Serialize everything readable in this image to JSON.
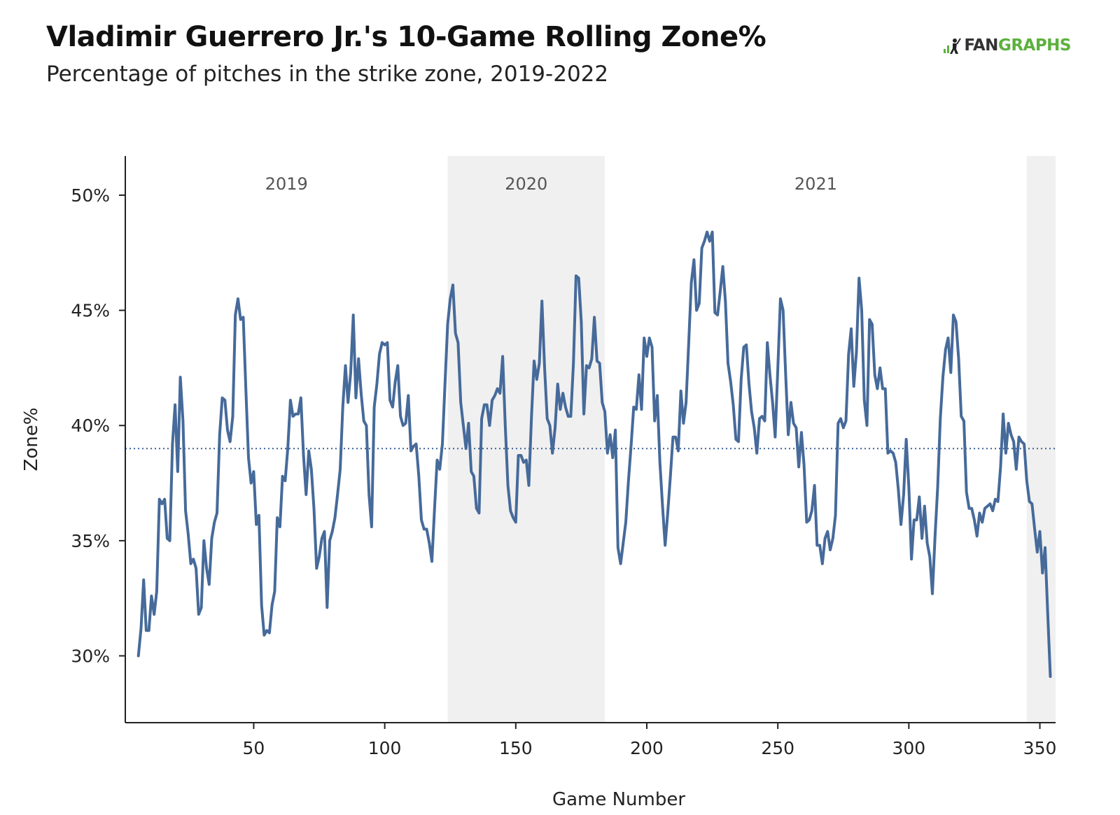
{
  "header": {
    "title": "Vladimir Guerrero Jr.'s 10-Game Rolling Zone%",
    "subtitle": "Percentage of pitches in the strike zone, 2019-2022",
    "logo_prefix": "FAN",
    "logo_suffix": "GRAPHS"
  },
  "colors": {
    "line": "#466a9a",
    "shade": "#f0f0f0",
    "logo_green": "#5cb13d"
  },
  "chart_data": {
    "type": "line",
    "title": "Vladimir Guerrero Jr.'s 10-Game Rolling Zone%",
    "subtitle": "Percentage of pitches in the strike zone, 2019-2022",
    "xlabel": "Game Number",
    "ylabel": "Zone%",
    "xlim": [
      1,
      356
    ],
    "ylim": [
      27.1,
      51.7
    ],
    "xticks": [
      50,
      100,
      150,
      200,
      250,
      300,
      350
    ],
    "yticks": [
      {
        "value": 30,
        "label": "30%"
      },
      {
        "value": 35,
        "label": "35%"
      },
      {
        "value": 40,
        "label": "40%"
      },
      {
        "value": 45,
        "label": "45%"
      },
      {
        "value": 50,
        "label": "50%"
      }
    ],
    "reference_line": {
      "value": 39.0,
      "style": "dotted"
    },
    "season_bands": [
      {
        "label": "2019",
        "start": 1,
        "end": 124,
        "shaded": false
      },
      {
        "label": "2020",
        "start": 124,
        "end": 184,
        "shaded": true
      },
      {
        "label": "2021",
        "start": 184,
        "end": 345,
        "shaded": false
      },
      {
        "label": "",
        "start": 345,
        "end": 356,
        "shaded": true
      }
    ],
    "series": [
      {
        "name": "10-Game Rolling Zone%",
        "x": [
          6,
          7,
          8,
          9,
          10,
          11,
          12,
          13,
          14,
          15,
          16,
          17,
          18,
          19,
          20,
          21,
          22,
          23,
          24,
          25,
          26,
          27,
          28,
          29,
          30,
          31,
          32,
          33,
          34,
          35,
          36,
          37,
          38,
          39,
          40,
          41,
          42,
          43,
          44,
          45,
          46,
          47,
          48,
          49,
          50,
          51,
          52,
          53,
          54,
          55,
          56,
          57,
          58,
          59,
          60,
          61,
          62,
          63,
          64,
          65,
          66,
          67,
          68,
          69,
          70,
          71,
          72,
          73,
          74,
          75,
          76,
          77,
          78,
          79,
          80,
          81,
          82,
          83,
          84,
          85,
          86,
          87,
          88,
          89,
          90,
          91,
          92,
          93,
          94,
          95,
          96,
          97,
          98,
          99,
          100,
          101,
          102,
          103,
          104,
          105,
          106,
          107,
          108,
          109,
          110,
          111,
          112,
          113,
          114,
          115,
          116,
          117,
          118,
          119,
          120,
          121,
          122,
          123,
          124,
          125,
          126,
          127,
          128,
          129,
          130,
          131,
          132,
          133,
          134,
          135,
          136,
          137,
          138,
          139,
          140,
          141,
          142,
          143,
          144,
          145,
          146,
          147,
          148,
          149,
          150,
          151,
          152,
          153,
          154,
          155,
          156,
          157,
          158,
          159,
          160,
          161,
          162,
          163,
          164,
          165,
          166,
          167,
          168,
          169,
          170,
          171,
          172,
          173,
          174,
          175,
          176,
          177,
          178,
          179,
          180,
          181,
          182,
          183,
          184,
          185,
          186,
          187,
          188,
          189,
          190,
          191,
          192,
          193,
          194,
          195,
          196,
          197,
          198,
          199,
          200,
          201,
          202,
          203,
          204,
          205,
          206,
          207,
          208,
          209,
          210,
          211,
          212,
          213,
          214,
          215,
          216,
          217,
          218,
          219,
          220,
          221,
          222,
          223,
          224,
          225,
          226,
          227,
          228,
          229,
          230,
          231,
          232,
          233,
          234,
          235,
          236,
          237,
          238,
          239,
          240,
          241,
          242,
          243,
          244,
          245,
          246,
          247,
          248,
          249,
          250,
          251,
          252,
          253,
          254,
          255,
          256,
          257,
          258,
          259,
          260,
          261,
          262,
          263,
          264,
          265,
          266,
          267,
          268,
          269,
          270,
          271,
          272,
          273,
          274,
          275,
          276,
          277,
          278,
          279,
          280,
          281,
          282,
          283,
          284,
          285,
          286,
          287,
          288,
          289,
          290,
          291,
          292,
          293,
          294,
          295,
          296,
          297,
          298,
          299,
          300,
          301,
          302,
          303,
          304,
          305,
          306,
          307,
          308,
          309,
          310,
          311,
          312,
          313,
          314,
          315,
          316,
          317,
          318,
          319,
          320,
          321,
          322,
          323,
          324,
          325,
          326,
          327,
          328,
          329,
          330,
          331,
          332,
          333,
          334,
          335,
          336,
          337,
          338,
          339,
          340,
          341,
          342,
          343,
          344,
          345,
          346,
          347,
          348,
          349,
          350,
          351,
          352,
          353,
          354
        ],
        "values": [
          30.0,
          31.2,
          33.3,
          31.1,
          31.1,
          32.6,
          31.8,
          32.8,
          36.8,
          36.6,
          36.8,
          35.1,
          35.0,
          39.2,
          40.9,
          38.0,
          42.1,
          40.2,
          36.3,
          35.3,
          34.0,
          34.2,
          33.8,
          31.8,
          32.1,
          35.0,
          33.8,
          33.1,
          35.1,
          35.8,
          36.2,
          39.6,
          41.2,
          41.1,
          39.8,
          39.3,
          40.4,
          44.8,
          45.5,
          44.6,
          44.7,
          41.6,
          38.6,
          37.5,
          38.0,
          35.7,
          36.1,
          32.2,
          30.9,
          31.1,
          31.0,
          32.2,
          32.8,
          36.0,
          35.6,
          37.8,
          37.6,
          39.0,
          41.1,
          40.4,
          40.5,
          40.5,
          41.2,
          38.7,
          37.0,
          38.9,
          38.1,
          36.4,
          33.8,
          34.3,
          35.1,
          35.4,
          32.1,
          35.0,
          35.4,
          36.0,
          37.0,
          38.1,
          40.8,
          42.6,
          41.0,
          42.3,
          44.8,
          41.2,
          42.9,
          41.4,
          40.2,
          40.0,
          37.0,
          35.6,
          40.8,
          41.8,
          43.1,
          43.6,
          43.5,
          43.6,
          41.1,
          40.8,
          41.9,
          42.6,
          40.4,
          40.0,
          40.1,
          41.3,
          38.9,
          39.1,
          39.2,
          37.8,
          35.9,
          35.5,
          35.5,
          34.9,
          34.1,
          36.4,
          38.5,
          38.1,
          39.2,
          41.8,
          44.4,
          45.5,
          46.1,
          44.0,
          43.6,
          41.0,
          40.0,
          39.0,
          40.1,
          38.0,
          37.8,
          36.4,
          36.2,
          40.3,
          40.9,
          40.9,
          40.0,
          41.1,
          41.3,
          41.6,
          41.4,
          43.0,
          40.0,
          37.4,
          36.3,
          36.0,
          35.8,
          38.7,
          38.7,
          38.4,
          38.5,
          37.4,
          40.4,
          42.8,
          42.0,
          42.7,
          45.4,
          42.5,
          40.3,
          40.0,
          38.8,
          39.9,
          41.8,
          40.7,
          41.4,
          40.8,
          40.4,
          40.4,
          42.7,
          46.5,
          46.4,
          44.5,
          40.5,
          42.6,
          42.5,
          42.9,
          44.7,
          42.8,
          42.7,
          41.0,
          40.6,
          38.8,
          39.6,
          38.6,
          39.8,
          34.7,
          34.0,
          34.9,
          35.8,
          37.6,
          39.1,
          40.8,
          40.7,
          42.2,
          40.7,
          43.8,
          43.0,
          43.8,
          43.4,
          40.2,
          41.3,
          38.4,
          36.5,
          34.8,
          36.2,
          37.8,
          39.5,
          39.5,
          38.9,
          41.5,
          40.1,
          41.0,
          43.6,
          46.2,
          47.2,
          45.0,
          45.3,
          47.7,
          48.0,
          48.4,
          48.0,
          48.4,
          44.9,
          44.8,
          45.8,
          46.9,
          45.4,
          42.7,
          41.9,
          40.9,
          39.4,
          39.3,
          42.0,
          43.4,
          43.5,
          41.8,
          40.6,
          39.9,
          38.8,
          40.3,
          40.4,
          40.2,
          43.6,
          42.2,
          41.0,
          39.5,
          42.5,
          45.5,
          45.0,
          42.2,
          39.6,
          41.0,
          40.1,
          39.9,
          38.2,
          39.7,
          38.3,
          35.8,
          35.9,
          36.3,
          37.4,
          34.8,
          34.8,
          34.0,
          35.1,
          35.4,
          34.6,
          35.1,
          36.1,
          40.1,
          40.3,
          39.9,
          40.2,
          43.1,
          44.2,
          41.7,
          43.2,
          46.4,
          45.0,
          41.1,
          40.0,
          44.6,
          44.4,
          42.2,
          41.6,
          42.5,
          41.6,
          41.6,
          38.8,
          38.9,
          38.8,
          38.4,
          37.2,
          35.7,
          37.0,
          39.4,
          37.3,
          34.2,
          35.9,
          35.9,
          36.9,
          35.1,
          36.5,
          34.9,
          34.3,
          32.7,
          35.2,
          37.3,
          40.3,
          42.1,
          43.3,
          43.8,
          42.3,
          44.8,
          44.5,
          42.9,
          40.4,
          40.2,
          37.1,
          36.4,
          36.4,
          35.9,
          35.2,
          36.2,
          35.8,
          36.4,
          36.5,
          36.6,
          36.3,
          36.8,
          36.7,
          38.2,
          40.5,
          38.8,
          40.1,
          39.6,
          39.3,
          38.1,
          39.5,
          39.3,
          39.2,
          37.6,
          36.7,
          36.6,
          35.5,
          34.5,
          35.4,
          33.6,
          34.7,
          31.8,
          29.1
        ]
      }
    ]
  }
}
